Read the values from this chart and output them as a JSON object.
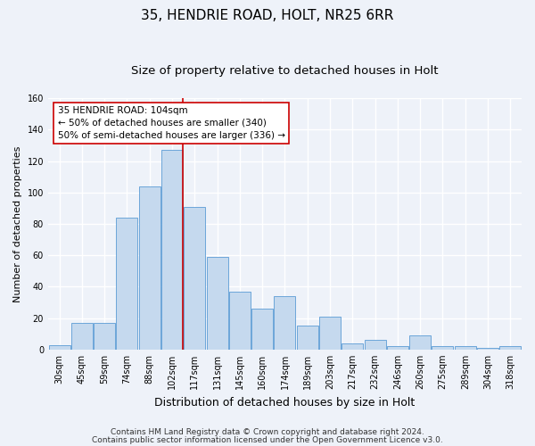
{
  "title1": "35, HENDRIE ROAD, HOLT, NR25 6RR",
  "title2": "Size of property relative to detached houses in Holt",
  "xlabel": "Distribution of detached houses by size in Holt",
  "ylabel": "Number of detached properties",
  "bar_labels": [
    "30sqm",
    "45sqm",
    "59sqm",
    "74sqm",
    "88sqm",
    "102sqm",
    "117sqm",
    "131sqm",
    "145sqm",
    "160sqm",
    "174sqm",
    "189sqm",
    "203sqm",
    "217sqm",
    "232sqm",
    "246sqm",
    "260sqm",
    "275sqm",
    "289sqm",
    "304sqm",
    "318sqm"
  ],
  "bar_values": [
    3,
    17,
    17,
    84,
    104,
    127,
    91,
    59,
    37,
    26,
    34,
    15,
    21,
    4,
    6,
    2,
    9,
    2,
    2,
    1,
    2
  ],
  "bar_color": "#c5d9ee",
  "bar_edge_color": "#5b9bd5",
  "vline_color": "#cc0000",
  "annotation_title": "35 HENDRIE ROAD: 104sqm",
  "annotation_line1": "← 50% of detached houses are smaller (340)",
  "annotation_line2": "50% of semi-detached houses are larger (336) →",
  "annotation_box_color": "#ffffff",
  "annotation_box_edge": "#cc0000",
  "ylim": [
    0,
    160
  ],
  "yticks": [
    0,
    20,
    40,
    60,
    80,
    100,
    120,
    140,
    160
  ],
  "footer1": "Contains HM Land Registry data © Crown copyright and database right 2024.",
  "footer2": "Contains public sector information licensed under the Open Government Licence v3.0.",
  "background_color": "#eef2f9",
  "plot_bg_color": "#eef2f9",
  "grid_color": "#ffffff",
  "title1_fontsize": 11,
  "title2_fontsize": 9.5,
  "xlabel_fontsize": 9,
  "ylabel_fontsize": 8,
  "tick_fontsize": 7,
  "annotation_fontsize": 7.5,
  "footer_fontsize": 6.5
}
